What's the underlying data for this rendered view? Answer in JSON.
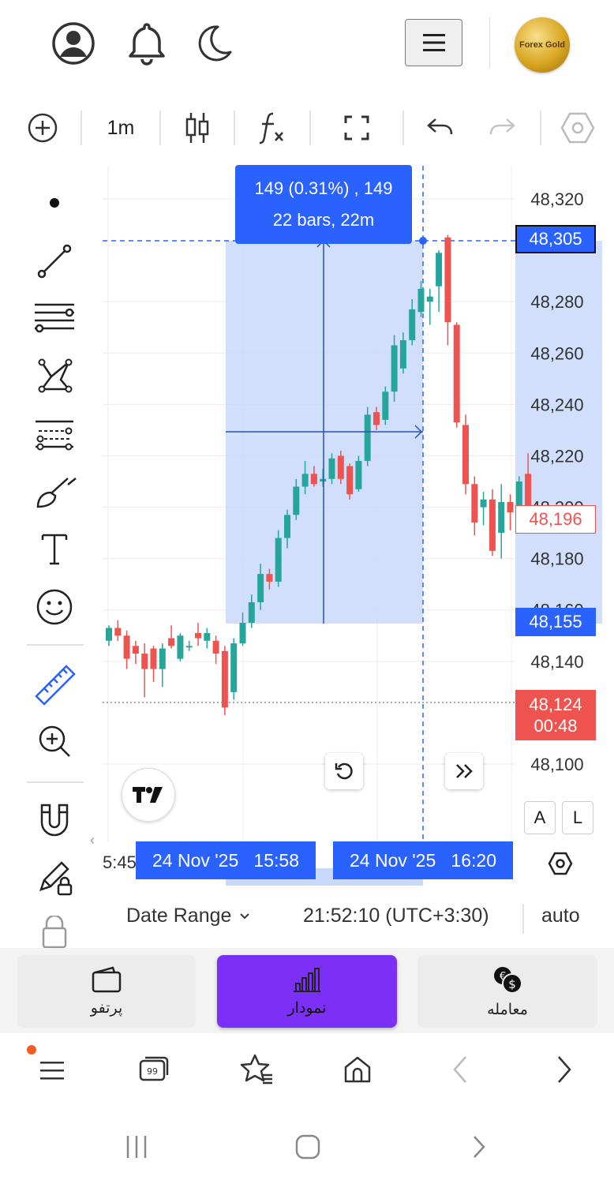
{
  "header": {
    "icons": [
      "account-icon",
      "bell-icon",
      "moon-icon",
      "menu-icon"
    ],
    "logo_text": "Forex Gold"
  },
  "toolbar": {
    "interval": "1m"
  },
  "chart_data": {
    "type": "candlestick",
    "y_ticks": [
      "48,320",
      "48,280",
      "48,260",
      "48,240",
      "48,220",
      "48,200",
      "48,180",
      "48,160",
      "48,140",
      "48,100"
    ],
    "y_range": [
      48095,
      48325
    ],
    "series": [
      {
        "c": "g",
        "o": 48148,
        "h": 48154,
        "l": 48146,
        "cl": 48153
      },
      {
        "c": "r",
        "o": 48153,
        "h": 48156,
        "l": 48148,
        "cl": 48150
      },
      {
        "c": "r",
        "o": 48150,
        "h": 48152,
        "l": 48137,
        "cl": 48141
      },
      {
        "c": "r",
        "o": 48146,
        "h": 48148,
        "l": 48139,
        "cl": 48143
      },
      {
        "c": "r",
        "o": 48143,
        "h": 48147,
        "l": 48126,
        "cl": 48137
      },
      {
        "c": "r",
        "o": 48145,
        "h": 48146,
        "l": 48132,
        "cl": 48137
      },
      {
        "c": "g",
        "o": 48137,
        "h": 48147,
        "l": 48130,
        "cl": 48145
      },
      {
        "c": "r",
        "o": 48149,
        "h": 48154,
        "l": 48145,
        "cl": 48146
      },
      {
        "c": "g",
        "o": 48141,
        "h": 48151,
        "l": 48140,
        "cl": 48150
      },
      {
        "c": "g",
        "o": 48146,
        "h": 48148,
        "l": 48144,
        "cl": 48146
      },
      {
        "c": "r",
        "o": 48151,
        "h": 48155,
        "l": 48146,
        "cl": 48149
      },
      {
        "c": "g",
        "o": 48148,
        "h": 48153,
        "l": 48145,
        "cl": 48151
      },
      {
        "c": "r",
        "o": 48148,
        "h": 48150,
        "l": 48139,
        "cl": 48143
      },
      {
        "c": "r",
        "o": 48144,
        "h": 48146,
        "l": 48119,
        "cl": 48122
      },
      {
        "c": "g",
        "o": 48128,
        "h": 48149,
        "l": 48125,
        "cl": 48147
      },
      {
        "c": "g",
        "o": 48147,
        "h": 48159,
        "l": 48146,
        "cl": 48155
      },
      {
        "c": "g",
        "o": 48155,
        "h": 48166,
        "l": 48153,
        "cl": 48163
      },
      {
        "c": "g",
        "o": 48163,
        "h": 48178,
        "l": 48160,
        "cl": 48174
      },
      {
        "c": "r",
        "o": 48174,
        "h": 48176,
        "l": 48168,
        "cl": 48171
      },
      {
        "c": "g",
        "o": 48171,
        "h": 48191,
        "l": 48169,
        "cl": 48188
      },
      {
        "c": "g",
        "o": 48188,
        "h": 48199,
        "l": 48184,
        "cl": 48197
      },
      {
        "c": "g",
        "o": 48197,
        "h": 48211,
        "l": 48195,
        "cl": 48208
      },
      {
        "c": "g",
        "o": 48208,
        "h": 48218,
        "l": 48205,
        "cl": 48213
      },
      {
        "c": "r",
        "o": 48213,
        "h": 48216,
        "l": 48208,
        "cl": 48209
      },
      {
        "c": "g",
        "o": 48210,
        "h": 48215,
        "l": 48208,
        "cl": 48211
      },
      {
        "c": "g",
        "o": 48211,
        "h": 48221,
        "l": 48209,
        "cl": 48219
      },
      {
        "c": "r",
        "o": 48220,
        "h": 48222,
        "l": 48209,
        "cl": 48211
      },
      {
        "c": "r",
        "o": 48216,
        "h": 48217,
        "l": 48203,
        "cl": 48205
      },
      {
        "c": "g",
        "o": 48207,
        "h": 48220,
        "l": 48206,
        "cl": 48218
      },
      {
        "c": "g",
        "o": 48218,
        "h": 48239,
        "l": 48216,
        "cl": 48236
      },
      {
        "c": "r",
        "o": 48237,
        "h": 48239,
        "l": 48230,
        "cl": 48232
      },
      {
        "c": "g",
        "o": 48234,
        "h": 48247,
        "l": 48232,
        "cl": 48245
      },
      {
        "c": "g",
        "o": 48245,
        "h": 48267,
        "l": 48241,
        "cl": 48263
      },
      {
        "c": "g",
        "o": 48254,
        "h": 48268,
        "l": 48252,
        "cl": 48265
      },
      {
        "c": "g",
        "o": 48265,
        "h": 48281,
        "l": 48263,
        "cl": 48277
      },
      {
        "c": "g",
        "o": 48276,
        "h": 48288,
        "l": 48274,
        "cl": 48285
      },
      {
        "c": "g",
        "o": 48280,
        "h": 48285,
        "l": 48271,
        "cl": 48282
      },
      {
        "c": "g",
        "o": 48286,
        "h": 48300,
        "l": 48276,
        "cl": 48299
      },
      {
        "c": "r",
        "o": 48305,
        "h": 48306,
        "l": 48263,
        "cl": 48272
      },
      {
        "c": "r",
        "o": 48271,
        "h": 48272,
        "l": 48231,
        "cl": 48233
      },
      {
        "c": "r",
        "o": 48232,
        "h": 48236,
        "l": 48205,
        "cl": 48209
      },
      {
        "c": "r",
        "o": 48209,
        "h": 48212,
        "l": 48189,
        "cl": 48194
      },
      {
        "c": "g",
        "o": 48200,
        "h": 48206,
        "l": 48193,
        "cl": 48203
      },
      {
        "c": "r",
        "o": 48203,
        "h": 48207,
        "l": 48181,
        "cl": 48183
      },
      {
        "c": "g",
        "o": 48190,
        "h": 48209,
        "l": 48180,
        "cl": 48202
      },
      {
        "c": "r",
        "o": 48202,
        "h": 48205,
        "l": 48191,
        "cl": 48198
      },
      {
        "c": "g",
        "o": 48196,
        "h": 48212,
        "l": 48195,
        "cl": 48210
      },
      {
        "c": "r",
        "o": 48213,
        "h": 48221,
        "l": 48194,
        "cl": 48198
      }
    ]
  },
  "measure": {
    "line1": "149 (0.31%) , 149",
    "line2": "22 bars, 22m"
  },
  "price_tags": {
    "top": "48,305",
    "current": "48,196",
    "bottom": "48,155",
    "last": "48,124",
    "countdown": "00:48"
  },
  "time_axis": {
    "left_clip": "5:45",
    "start": "24 Nov '25   15:58",
    "end": "24 Nov '25   16:20"
  },
  "scale_buttons": {
    "auto_label": "A",
    "log_label": "L"
  },
  "footer": {
    "date_range": "Date Range",
    "clock": "21:52:10 (UTC+3:30)",
    "auto": "auto"
  },
  "tabs": {
    "portfolio": "پرتفو",
    "chart": "نمودار",
    "trade": "معامله"
  },
  "colors": {
    "up": "#26a69a",
    "down": "#ef5350",
    "accent": "#2962ff",
    "purple": "#7b2ff7",
    "selection": "#c9d9fb"
  }
}
